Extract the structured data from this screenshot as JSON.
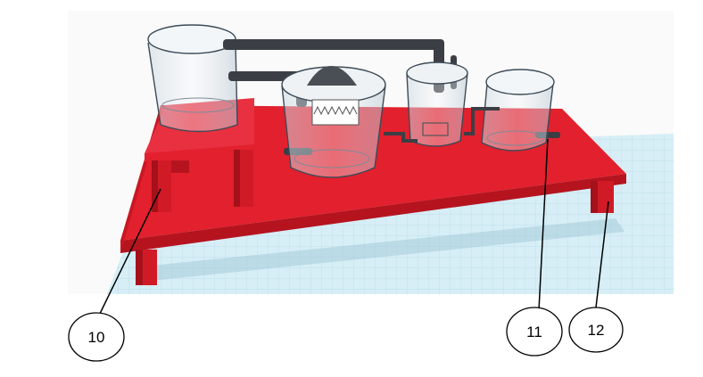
{
  "callouts": [
    {
      "label": "10"
    },
    {
      "label": "11"
    },
    {
      "label": "12"
    }
  ],
  "colors": {
    "platform": "#e3202d",
    "platform_dark": "#b5141f",
    "grid_bg": "#d6eef6",
    "grid_line": "#a9d6e6",
    "glass": "#dfe8ef",
    "pipe": "#3b3f45"
  }
}
